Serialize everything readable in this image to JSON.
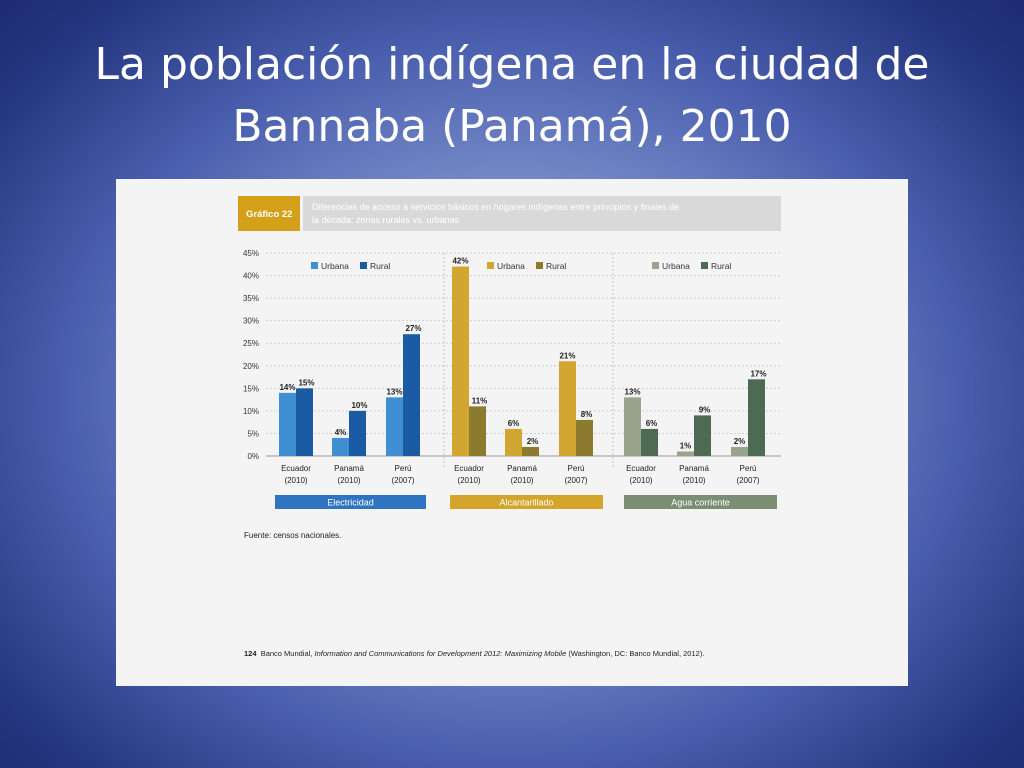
{
  "slide": {
    "title_line1": "La población indígena en la ciudad de",
    "title_line2": "Bannaba (Panamá), 2010"
  },
  "figure": {
    "label": "Gráfico 22",
    "caption_line1": "Diferencias de acceso a servicios básicos en hogares indígenas entre principios y finales de",
    "caption_line2": "la década: zonas rurales vs. urbanas",
    "source": "Fuente: censos nacionales.",
    "footer_page": "124",
    "footer_pre": "Banco Mundial, ",
    "footer_italic": "Information and Communications for Development 2012: Maximizing Mobile",
    "footer_post": " (Washington, DC: Banco Mundial, 2012)."
  },
  "colors": {
    "title_box": "#d4a01a",
    "caption_box": "#d9d9d9",
    "grid": "#cfcfcf"
  },
  "chart_data": {
    "type": "bar",
    "ylim": [
      0,
      45
    ],
    "yticks": [
      "0%",
      "5%",
      "10%",
      "15%",
      "20%",
      "25%",
      "30%",
      "35%",
      "40%",
      "45%"
    ],
    "groups": [
      {
        "name": "Electricidad",
        "colors": {
          "urban": "#3f8fd2",
          "rural": "#1b5ba4",
          "band": "#2f74c0"
        },
        "legend": [
          "Urbana",
          "Rural"
        ],
        "categories": [
          [
            "Ecuador",
            "(2010)"
          ],
          [
            "Panamá",
            "(2010)"
          ],
          [
            "Perú",
            "(2007)"
          ]
        ],
        "urban": [
          14,
          4,
          13
        ],
        "rural": [
          15,
          10,
          27
        ],
        "urban_labels": [
          "14%",
          "4%",
          "13%"
        ],
        "rural_labels": [
          "15%",
          "10%",
          "27%"
        ]
      },
      {
        "name": "Alcantarillado",
        "colors": {
          "urban": "#d2a731",
          "rural": "#8c7a2f",
          "band": "#d3a52a"
        },
        "legend": [
          "Urbana",
          "Rural"
        ],
        "categories": [
          [
            "Ecuador",
            "(2010)"
          ],
          [
            "Panamá",
            "(2010)"
          ],
          [
            "Perú",
            "(2007)"
          ]
        ],
        "urban": [
          42,
          6,
          21
        ],
        "rural": [
          11,
          2,
          8
        ],
        "urban_labels": [
          "42%",
          "6%",
          "21%"
        ],
        "rural_labels": [
          "11%",
          "2%",
          "8%"
        ]
      },
      {
        "name": "Agua corriente",
        "colors": {
          "urban": "#98a58c",
          "rural": "#4f6a52",
          "band": "#7b8d72"
        },
        "legend": [
          "Urbana",
          "Rural"
        ],
        "categories": [
          [
            "Ecuador",
            "(2010)"
          ],
          [
            "Panamá",
            "(2010)"
          ],
          [
            "Perú",
            "(2007)"
          ]
        ],
        "urban": [
          13,
          1,
          2
        ],
        "rural": [
          6,
          9,
          17
        ],
        "urban_labels": [
          "13%",
          "1%",
          "2%"
        ],
        "rural_labels": [
          "6%",
          "9%",
          "17%"
        ]
      }
    ]
  }
}
